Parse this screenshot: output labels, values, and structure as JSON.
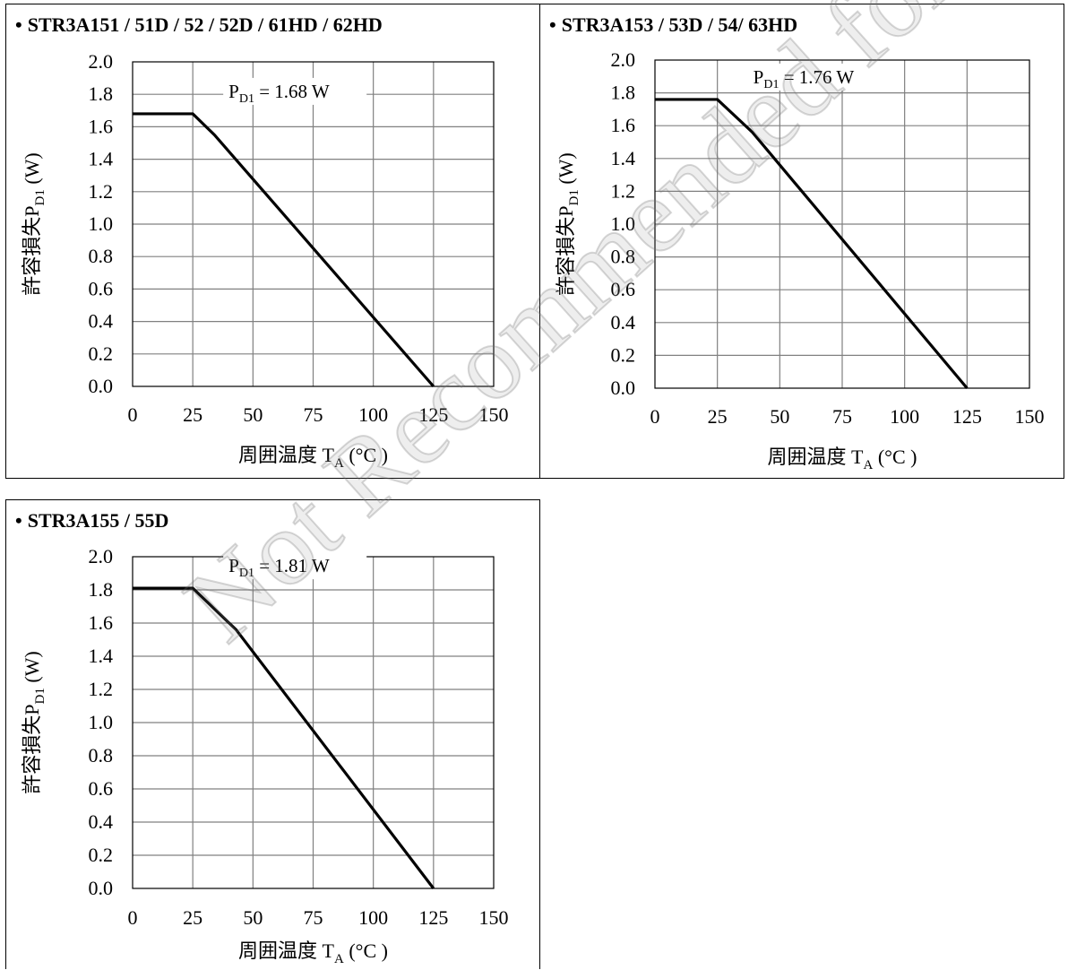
{
  "watermark": "Not Recommended for New Designs",
  "colors": {
    "line": "#000000",
    "grid": "#808080",
    "background": "#ffffff"
  },
  "chart_data": [
    {
      "type": "line",
      "title": "STR3A151 / 51D / 52 / 52D / 61HD / 62HD",
      "bullet": "•",
      "xlabel_main": "周囲温度 T",
      "xlabel_sub": "A",
      "xlabel_tail": " (°C )",
      "ylabel_main": "許容損失P",
      "ylabel_sub": "D1",
      "ylabel_tail": "  (W)",
      "annotation_main": "P",
      "annotation_sub": "D1",
      "annotation_tail": " = 1.68 W",
      "annotation_at": [
        25,
        1.68
      ],
      "xlim": [
        0,
        150
      ],
      "ylim": [
        0.0,
        2.0
      ],
      "x_ticks": [
        "0",
        "25",
        "50",
        "75",
        "100",
        "125",
        "150"
      ],
      "y_ticks": [
        "0.0",
        "0.2",
        "0.4",
        "0.6",
        "0.8",
        "1.0",
        "1.2",
        "1.4",
        "1.6",
        "1.8",
        "2.0"
      ],
      "grid": true,
      "series": [
        {
          "x": [
            0,
            25,
            34,
            125
          ],
          "y": [
            1.68,
            1.68,
            1.55,
            0.0
          ]
        }
      ]
    },
    {
      "type": "line",
      "title": "STR3A153 / 53D / 54/ 63HD",
      "bullet": "•",
      "xlabel_main": "周囲温度 T",
      "xlabel_sub": "A",
      "xlabel_tail": " (°C )",
      "ylabel_main": "許容損失P",
      "ylabel_sub": "D1",
      "ylabel_tail": "  (W)",
      "annotation_main": "P",
      "annotation_sub": "D1",
      "annotation_tail": " = 1.76 W",
      "annotation_at": [
        25,
        1.76
      ],
      "xlim": [
        0,
        150
      ],
      "ylim": [
        0.0,
        2.0
      ],
      "x_ticks": [
        "0",
        "25",
        "50",
        "75",
        "100",
        "125",
        "150"
      ],
      "y_ticks": [
        "0.0",
        "0.2",
        "0.4",
        "0.6",
        "0.8",
        "1.0",
        "1.2",
        "1.4",
        "1.6",
        "1.8",
        "2.0"
      ],
      "grid": true,
      "series": [
        {
          "x": [
            0,
            25,
            39,
            125
          ],
          "y": [
            1.76,
            1.76,
            1.56,
            0.0
          ]
        }
      ]
    },
    {
      "type": "line",
      "title": "STR3A155 / 55D",
      "bullet": "•",
      "xlabel_main": "周囲温度 T",
      "xlabel_sub": "A",
      "xlabel_tail": " (°C )",
      "ylabel_main": "許容損失P",
      "ylabel_sub": "D1",
      "ylabel_tail": "  (W)",
      "annotation_main": "P",
      "annotation_sub": "D1",
      "annotation_tail": " = 1.81 W",
      "annotation_at": [
        25,
        1.81
      ],
      "xlim": [
        0,
        150
      ],
      "ylim": [
        0.0,
        2.0
      ],
      "x_ticks": [
        "0",
        "25",
        "50",
        "75",
        "100",
        "125",
        "150"
      ],
      "y_ticks": [
        "0.0",
        "0.2",
        "0.4",
        "0.6",
        "0.8",
        "1.0",
        "1.2",
        "1.4",
        "1.6",
        "1.8",
        "2.0"
      ],
      "grid": true,
      "series": [
        {
          "x": [
            0,
            25,
            43,
            125
          ],
          "y": [
            1.81,
            1.81,
            1.56,
            0.0
          ]
        }
      ]
    }
  ]
}
